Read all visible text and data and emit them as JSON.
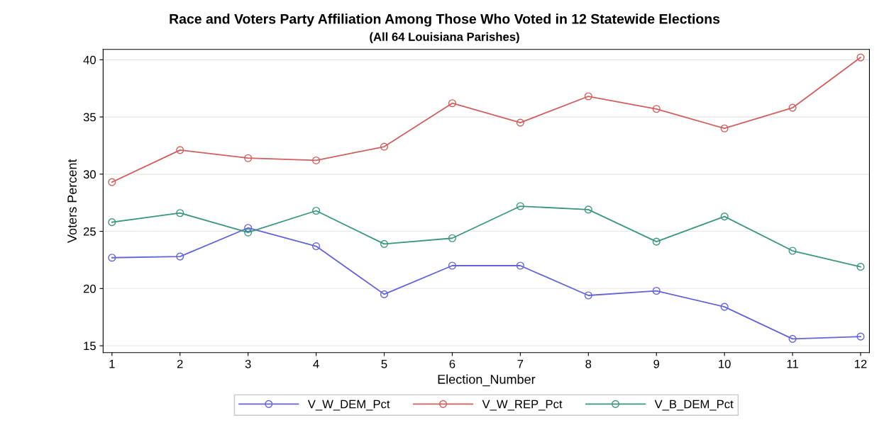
{
  "chart_data": {
    "type": "line",
    "title": "Race and Voters Party Affiliation Among Those Who Voted in 12 Statewide Elections",
    "subtitle": "(All 64 Louisiana Parishes)",
    "xlabel": "Election_Number",
    "ylabel": "Voters Percent",
    "x": [
      1,
      2,
      3,
      4,
      5,
      6,
      7,
      8,
      9,
      10,
      11,
      12
    ],
    "series": [
      {
        "name": "V_W_DEM_Pct",
        "color": "#6464d8",
        "values": [
          22.7,
          22.8,
          25.3,
          23.7,
          19.5,
          22.0,
          22.0,
          19.4,
          19.8,
          18.4,
          15.6,
          15.8
        ]
      },
      {
        "name": "V_W_REP_Pct",
        "color": "#d06060",
        "values": [
          29.3,
          32.1,
          31.4,
          31.2,
          32.4,
          36.2,
          34.5,
          36.8,
          35.7,
          34.0,
          35.8,
          40.2
        ]
      },
      {
        "name": "V_B_DEM_Pct",
        "color": "#3c9680",
        "values": [
          25.8,
          26.6,
          24.9,
          26.8,
          23.9,
          24.4,
          27.2,
          26.9,
          24.1,
          26.3,
          23.3,
          21.9
        ]
      }
    ],
    "xlim": [
      0.87,
      12.13
    ],
    "ylim": [
      14.4,
      40.9
    ],
    "xticks": [
      1,
      2,
      3,
      4,
      5,
      6,
      7,
      8,
      9,
      10,
      11,
      12
    ],
    "yticks": [
      15,
      20,
      25,
      30,
      35,
      40
    ],
    "grid": "y",
    "legend": "bottom",
    "marker": "circle",
    "line_style": "solid"
  }
}
